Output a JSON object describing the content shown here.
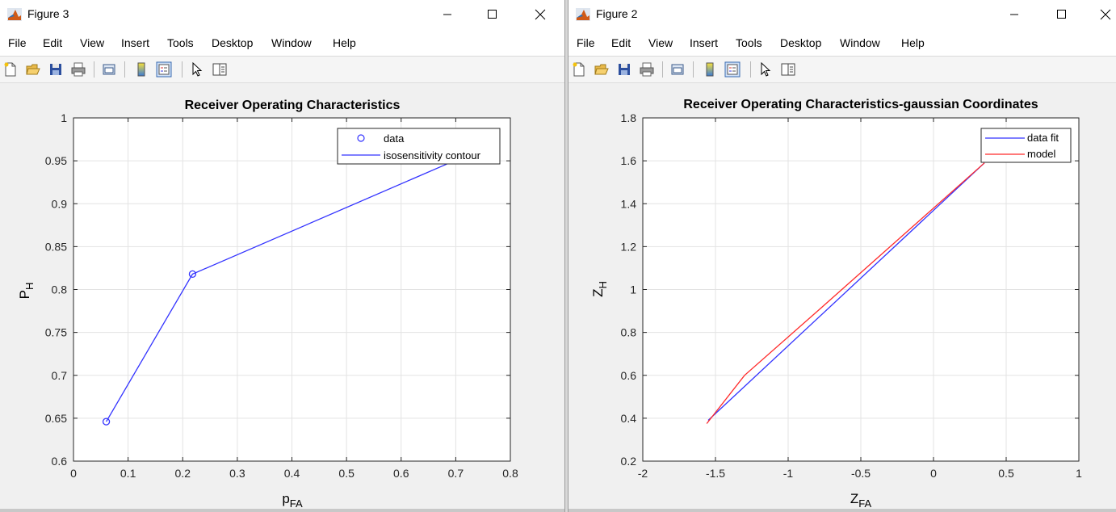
{
  "windows": {
    "fig3": {
      "title": "Figure 3",
      "menu": [
        "File",
        "Edit",
        "View",
        "Insert",
        "Tools",
        "Desktop",
        "Window",
        "Help"
      ],
      "chart": {
        "title": "Receiver Operating Characteristics",
        "ylabel_main": "P",
        "ylabel_sub": "H",
        "xlabel_main": "p",
        "xlabel_sub": "FA",
        "xticks": [
          "0",
          "0.1",
          "0.2",
          "0.3",
          "0.4",
          "0.5",
          "0.6",
          "0.7",
          "0.8"
        ],
        "yticks": [
          "0.6",
          "0.65",
          "0.7",
          "0.75",
          "0.8",
          "0.85",
          "0.9",
          "0.95",
          "1"
        ],
        "legend": [
          "data",
          "isosensitivity contour"
        ]
      }
    },
    "fig2": {
      "title": "Figure 2",
      "menu": [
        "File",
        "Edit",
        "View",
        "Insert",
        "Tools",
        "Desktop",
        "Window",
        "Help"
      ],
      "chart": {
        "title": "Receiver Operating Characteristics-gaussian Coordinates",
        "ylabel_main": "Z",
        "ylabel_sub": "H",
        "xlabel_main": "Z",
        "xlabel_sub": "FA",
        "xticks": [
          "-2",
          "-1.5",
          "-1",
          "-0.5",
          "0",
          "0.5",
          "1"
        ],
        "yticks": [
          "0.2",
          "0.4",
          "0.6",
          "0.8",
          "1",
          "1.2",
          "1.4",
          "1.6",
          "1.8"
        ],
        "legend": [
          "data fit",
          "model"
        ]
      }
    }
  },
  "chart_data": [
    {
      "type": "line",
      "title": "Receiver Operating Characteristics",
      "xlabel": "pFA",
      "ylabel": "PH",
      "xlim": [
        0,
        0.8
      ],
      "ylim": [
        0.6,
        1
      ],
      "grid": true,
      "legend_position": "top-right",
      "series": [
        {
          "name": "data",
          "style": "markers",
          "x": [
            0.06,
            0.218
          ],
          "y": [
            0.646,
            0.818
          ],
          "color": "#3333ff"
        },
        {
          "name": "isosensitivity contour",
          "style": "line",
          "x": [
            0.06,
            0.218,
            0.69
          ],
          "y": [
            0.646,
            0.818,
            0.948
          ],
          "color": "#3333ff"
        }
      ]
    },
    {
      "type": "line",
      "title": "Receiver Operating Characteristics-gaussian Coordinates",
      "xlabel": "ZFA",
      "ylabel": "ZH",
      "xlim": [
        -2,
        1
      ],
      "ylim": [
        0.2,
        1.8
      ],
      "grid": true,
      "legend_position": "top-right",
      "series": [
        {
          "name": "data fit",
          "x": [
            -1.55,
            0.35
          ],
          "y": [
            0.39,
            1.59
          ],
          "color": "#3333ff"
        },
        {
          "name": "model",
          "x": [
            -1.56,
            -1.3,
            -0.78,
            0.35
          ],
          "y": [
            0.375,
            0.6,
            0.91,
            1.59
          ],
          "color": "#ff2a2a"
        }
      ]
    }
  ]
}
